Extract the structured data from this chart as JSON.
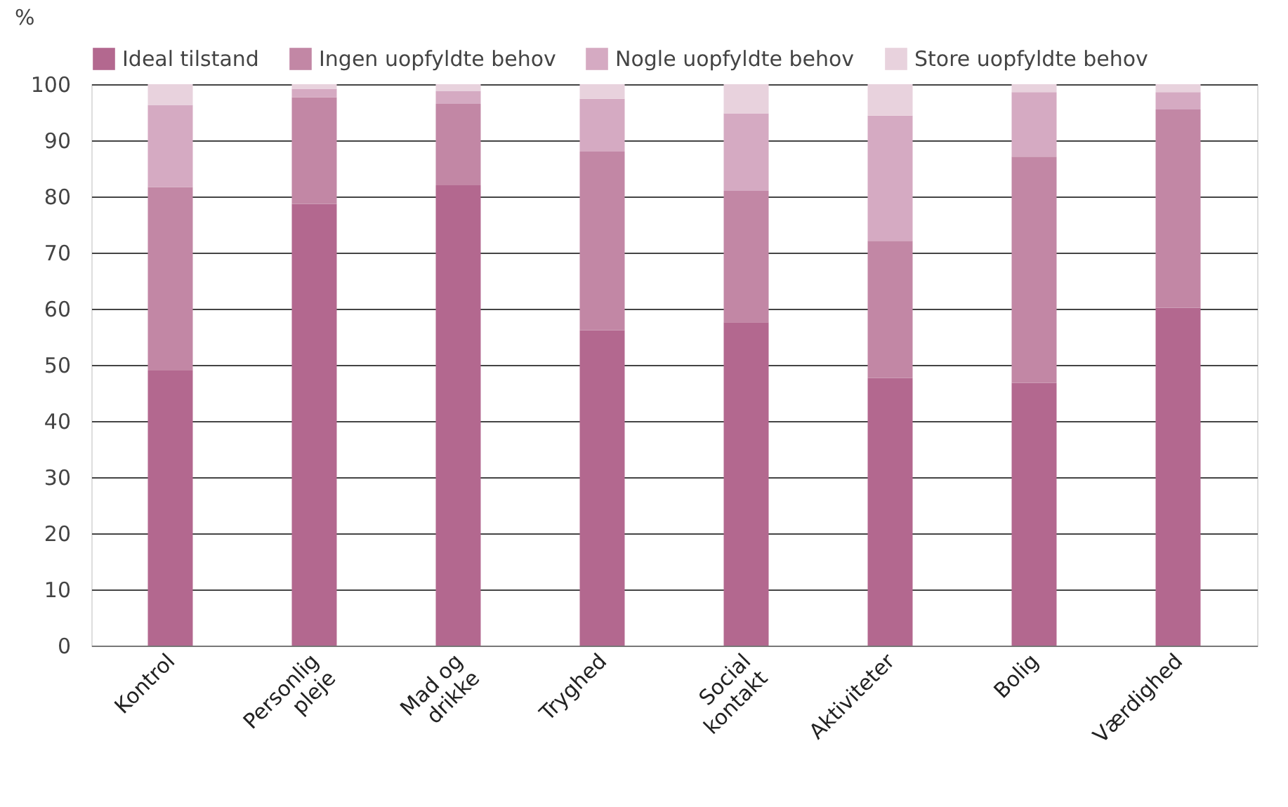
{
  "chart_data": {
    "type": "bar",
    "stacked": true,
    "ylabel": "%",
    "categories": [
      "Kontrol",
      "Personlig pleje",
      "Mad og drikke",
      "Tryghed",
      "Social kontakt",
      "Aktiviteter",
      "Bolig",
      "Værdighed"
    ],
    "series": [
      {
        "name": "Ideal tilstand",
        "color": "#b3688f",
        "values": [
          49,
          78.7,
          82,
          56.2,
          57.6,
          47.7,
          46.8,
          60.2
        ]
      },
      {
        "name": "Ingen uopfyldte behov",
        "color": "#c287a5",
        "values": [
          32.7,
          19,
          14.5,
          31.8,
          23.4,
          24.4,
          40.3,
          35.3
        ]
      },
      {
        "name": "Nogle uopfyldte behov",
        "color": "#d5aac2",
        "values": [
          14.6,
          1.5,
          2.3,
          9.4,
          13.8,
          22.3,
          11.5,
          3.1
        ]
      },
      {
        "name": "Store uopfyldte behov",
        "color": "#e8d2dd",
        "values": [
          3.7,
          0.8,
          1.2,
          2.6,
          5.2,
          5.6,
          1.4,
          1.4
        ]
      }
    ],
    "ylim": [
      0,
      100
    ],
    "yticks": [
      0,
      10,
      20,
      30,
      40,
      50,
      60,
      70,
      80,
      90,
      100
    ],
    "grid": "y",
    "legend": "top"
  }
}
